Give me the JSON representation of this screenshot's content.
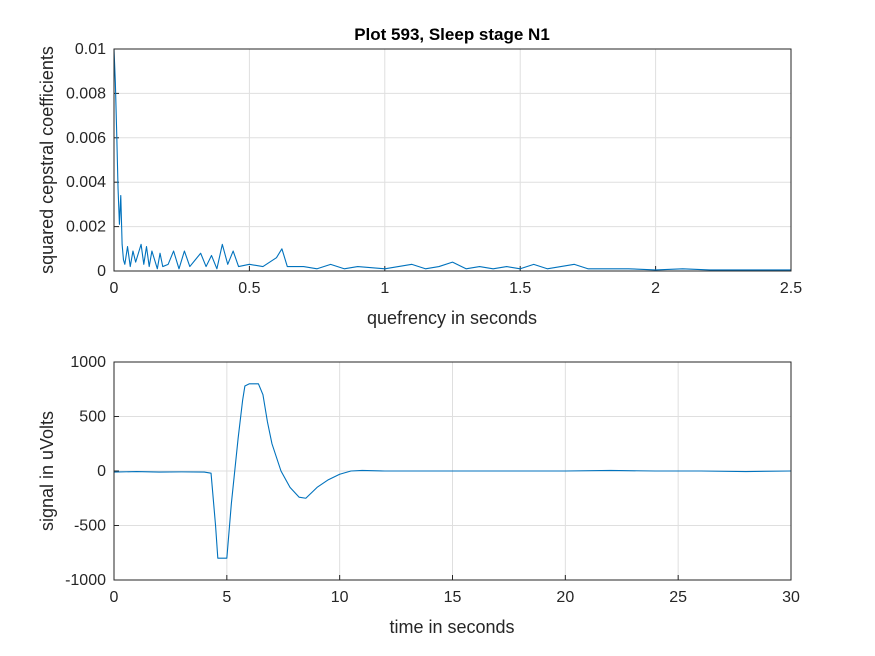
{
  "colors": {
    "series": "#0072bd",
    "grid": "#dfdfdf",
    "axis": "#262626",
    "background": "#ffffff"
  },
  "chart_data": [
    {
      "type": "line",
      "title": "Plot 593, Sleep stage N1",
      "xlabel": "quefrency in seconds",
      "ylabel": "squared cepstral coefficients",
      "xlim": [
        0,
        2.5
      ],
      "ylim": [
        0,
        0.01
      ],
      "xticks": [
        0,
        0.5,
        1,
        1.5,
        2,
        2.5
      ],
      "xtick_labels": [
        "0",
        "0.5",
        "1",
        "1.5",
        "2",
        "2.5"
      ],
      "yticks": [
        0,
        0.002,
        0.004,
        0.006,
        0.008,
        0.01
      ],
      "ytick_labels": [
        "0",
        "0.002",
        "0.004",
        "0.006",
        "0.008",
        "0.01"
      ],
      "grid": true,
      "series": [
        {
          "x": [
            0,
            0.005,
            0.01,
            0.015,
            0.02,
            0.025,
            0.03,
            0.035,
            0.04,
            0.05,
            0.06,
            0.07,
            0.08,
            0.09,
            0.1,
            0.11,
            0.12,
            0.13,
            0.14,
            0.15,
            0.16,
            0.17,
            0.18,
            0.2,
            0.22,
            0.24,
            0.26,
            0.28,
            0.3,
            0.32,
            0.34,
            0.36,
            0.38,
            0.4,
            0.42,
            0.44,
            0.46,
            0.5,
            0.55,
            0.6,
            0.62,
            0.64,
            0.7,
            0.75,
            0.8,
            0.85,
            0.9,
            1.0,
            1.05,
            1.1,
            1.15,
            1.2,
            1.25,
            1.3,
            1.35,
            1.4,
            1.45,
            1.5,
            1.55,
            1.6,
            1.65,
            1.7,
            1.75,
            1.8,
            1.9,
            2.0,
            2.1,
            2.2,
            2.3,
            2.4,
            2.5
          ],
          "y": [
            0.01,
            0.0085,
            0.0062,
            0.0037,
            0.0021,
            0.0034,
            0.0012,
            0.0005,
            0.0003,
            0.0011,
            0.0002,
            0.0009,
            0.0004,
            0.0008,
            0.0012,
            0.0003,
            0.0011,
            0.0002,
            0.0009,
            0.0005,
            0.0001,
            0.0008,
            0.0002,
            0.0003,
            0.0009,
            0.0001,
            0.0009,
            0.0002,
            0.0005,
            0.0008,
            0.0002,
            0.0007,
            0.0001,
            0.0012,
            0.0003,
            0.0009,
            0.0002,
            0.0003,
            0.0002,
            0.0006,
            0.001,
            0.0002,
            0.0002,
            0.0001,
            0.0003,
            0.0001,
            0.0002,
            0.0001,
            0.0002,
            0.0003,
            0.0001,
            0.0002,
            0.0004,
            0.0001,
            0.0002,
            0.0001,
            0.0002,
            0.0001,
            0.0003,
            0.0001,
            0.0002,
            0.0003,
            0.0001,
            0.0001,
            0.0001,
            5e-05,
            0.0001,
            5e-05,
            5e-05,
            5e-05,
            5e-05
          ]
        }
      ]
    },
    {
      "type": "line",
      "title": "",
      "xlabel": "time in seconds",
      "ylabel": "signal in uVolts",
      "xlim": [
        0,
        30
      ],
      "ylim": [
        -1000,
        1000
      ],
      "xticks": [
        0,
        5,
        10,
        15,
        20,
        25,
        30
      ],
      "xtick_labels": [
        "0",
        "5",
        "10",
        "15",
        "20",
        "25",
        "30"
      ],
      "yticks": [
        -1000,
        -500,
        0,
        500,
        1000
      ],
      "ytick_labels": [
        "-1000",
        "-500",
        "0",
        "500",
        "1000"
      ],
      "grid": true,
      "series": [
        {
          "x": [
            0,
            1,
            2,
            3,
            4,
            4.3,
            4.5,
            4.6,
            4.7,
            5.0,
            5.2,
            5.5,
            5.7,
            5.8,
            6.0,
            6.4,
            6.6,
            6.8,
            7.0,
            7.4,
            7.8,
            8.2,
            8.5,
            9.0,
            9.5,
            10.0,
            10.5,
            11,
            12,
            14,
            16,
            18,
            20,
            22,
            24,
            26,
            28,
            30
          ],
          "y": [
            -10,
            -5,
            -10,
            -8,
            -10,
            -20,
            -500,
            -800,
            -800,
            -800,
            -300,
            300,
            650,
            780,
            800,
            800,
            700,
            450,
            250,
            0,
            -150,
            -240,
            -250,
            -150,
            -80,
            -30,
            0,
            5,
            0,
            0,
            0,
            0,
            0,
            5,
            0,
            0,
            -5,
            0
          ]
        }
      ]
    }
  ]
}
